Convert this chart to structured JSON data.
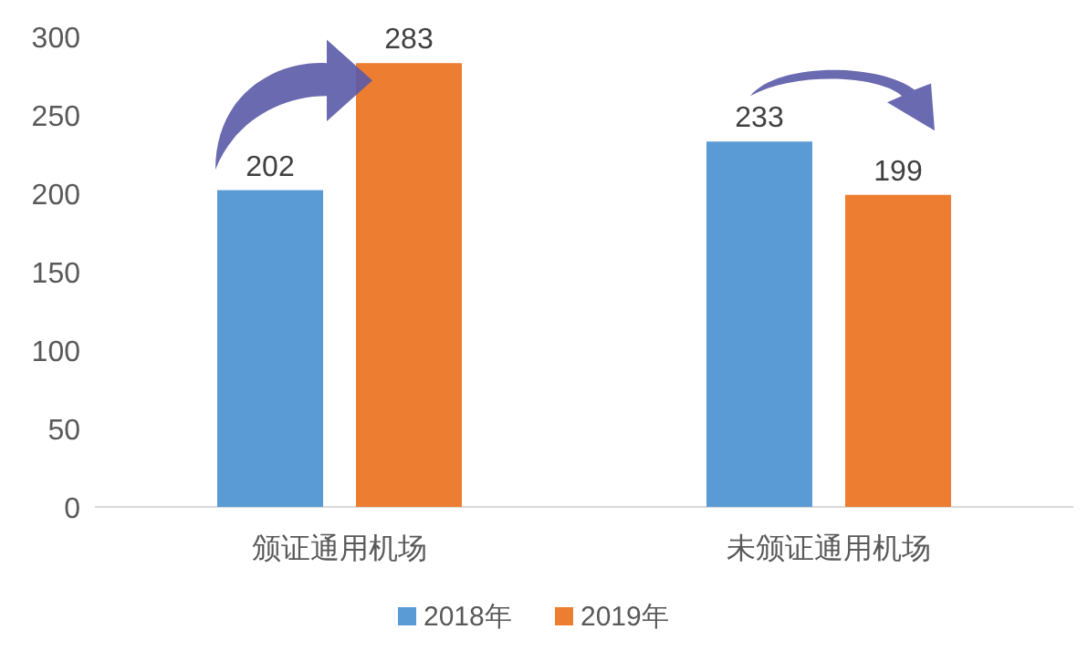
{
  "chart_data": {
    "type": "bar",
    "categories": [
      "颁证通用机场",
      "未颁证通用机场"
    ],
    "series": [
      {
        "name": "2018年",
        "color": "#5b9bd5",
        "values": [
          202,
          233
        ]
      },
      {
        "name": "2019年",
        "color": "#ed7d31",
        "values": [
          283,
          199
        ]
      }
    ],
    "ylim": [
      0,
      300
    ],
    "yticks": [
      0,
      50,
      100,
      150,
      200,
      250,
      300
    ],
    "data_labels": true,
    "legend": "bottom",
    "grid": false
  }
}
